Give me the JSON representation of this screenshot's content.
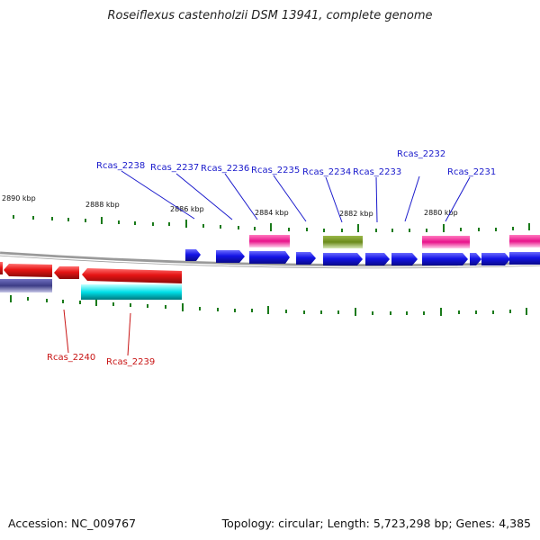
{
  "title": "Roseiflexus castenholzii DSM 13941, complete genome",
  "footer": {
    "accession": "Accession: NC_009767",
    "topology": "Topology: circular; Length: 5,723,298 bp; Genes: 4,385"
  },
  "colors": {
    "backbone": "#8a8a8a",
    "tick": "#1a7a1a",
    "cds_forward": "#1414e6",
    "cds_reverse": "#e61414",
    "rna_pink": "#e8128a",
    "rna_olive": "#6b8a1a",
    "cyan": "#00e0e8",
    "slate": "#3c3c86",
    "label_forward": "#1a1acc",
    "label_reverse": "#c81414"
  },
  "kbp_labels": [
    "2890 kbp",
    "2888 kbp",
    "2886 kbp",
    "2884 kbp",
    "2882 kbp",
    "2880 kbp"
  ],
  "gene_labels_top": [
    "Rcas_2238",
    "Rcas_2237",
    "Rcas_2236",
    "Rcas_2235",
    "Rcas_2234",
    "Rcas_2233",
    "Rcas_2232",
    "Rcas_2231"
  ],
  "gene_labels_bottom": [
    "Rcas_2240",
    "Rcas_2239"
  ]
}
